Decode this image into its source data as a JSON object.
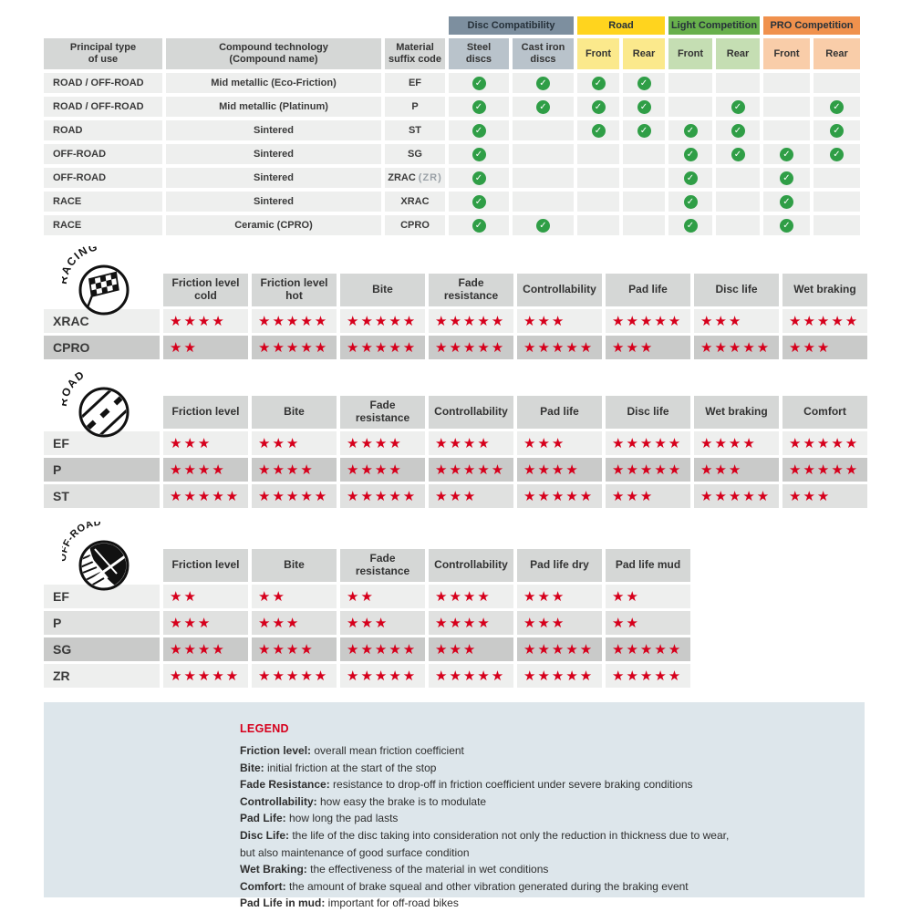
{
  "compat_table": {
    "col_headers": [
      "Principal type\nof use",
      "Compound technology\n(Compound name)",
      "Material\nsuffix code"
    ],
    "groups": [
      {
        "label": "Disc Compatibility",
        "color": "#7d8f9f",
        "sub_color": "#b9c3cb",
        "subs": [
          "Steel\ndiscs",
          "Cast iron\ndiscs"
        ]
      },
      {
        "label": "Road",
        "color": "#ffd41e",
        "sub_color": "#fbe98c",
        "subs": [
          "Front",
          "Rear"
        ]
      },
      {
        "label": "Light Competition",
        "color": "#68b04c",
        "sub_color": "#c5deb3",
        "subs": [
          "Front",
          "Rear"
        ]
      },
      {
        "label": "PRO Competition",
        "color": "#f0914d",
        "sub_color": "#f9cda9",
        "subs": [
          "Front",
          "Rear"
        ]
      }
    ],
    "rows": [
      {
        "use": "ROAD / OFF-ROAD",
        "compound": "Mid metallic (Eco-Friction)",
        "suffix": "EF",
        "suffix_alt": "",
        "checks": [
          1,
          1,
          1,
          1,
          0,
          0,
          0,
          0
        ]
      },
      {
        "use": "ROAD / OFF-ROAD",
        "compound": "Mid metallic (Platinum)",
        "suffix": "P",
        "suffix_alt": "",
        "checks": [
          1,
          1,
          1,
          1,
          0,
          1,
          0,
          1
        ]
      },
      {
        "use": "ROAD",
        "compound": "Sintered",
        "suffix": "ST",
        "suffix_alt": "",
        "checks": [
          1,
          0,
          1,
          1,
          1,
          1,
          0,
          1
        ]
      },
      {
        "use": "OFF-ROAD",
        "compound": "Sintered",
        "suffix": "SG",
        "suffix_alt": "",
        "checks": [
          1,
          0,
          0,
          0,
          1,
          1,
          1,
          1
        ]
      },
      {
        "use": "OFF-ROAD",
        "compound": "Sintered",
        "suffix": "ZRAC",
        "suffix_alt": "(ZR)",
        "checks": [
          1,
          0,
          0,
          0,
          1,
          0,
          1,
          0
        ]
      },
      {
        "use": "RACE",
        "compound": "Sintered",
        "suffix": "XRAC",
        "suffix_alt": "",
        "checks": [
          1,
          0,
          0,
          0,
          1,
          0,
          1,
          0
        ]
      },
      {
        "use": "RACE",
        "compound": "Ceramic (CPRO)",
        "suffix": "CPRO",
        "suffix_alt": "",
        "checks": [
          1,
          1,
          0,
          0,
          1,
          0,
          1,
          0
        ]
      }
    ]
  },
  "rating_tables": [
    {
      "id": "racing",
      "icon": "checkered-flag",
      "icon_label": "RACING",
      "columns": [
        "Friction level cold",
        "Friction level hot",
        "Bite",
        "Fade resistance",
        "Controllability",
        "Pad life",
        "Disc life",
        "Wet braking"
      ],
      "rows": [
        {
          "code": "XRAC",
          "shade": "light",
          "stars": [
            4,
            5,
            5,
            5,
            3,
            5,
            3,
            5
          ]
        },
        {
          "code": "CPRO",
          "shade": "dark",
          "stars": [
            2,
            5,
            5,
            5,
            5,
            3,
            5,
            3
          ]
        }
      ]
    },
    {
      "id": "road",
      "icon": "road",
      "icon_label": "ROAD",
      "columns": [
        "Friction level",
        "Bite",
        "Fade resistance",
        "Controllability",
        "Pad life",
        "Disc life",
        "Wet braking",
        "Comfort"
      ],
      "rows": [
        {
          "code": "EF",
          "shade": "light",
          "stars": [
            3,
            3,
            4,
            4,
            3,
            5,
            4,
            5
          ]
        },
        {
          "code": "P",
          "shade": "dark",
          "stars": [
            4,
            4,
            4,
            5,
            4,
            5,
            3,
            5
          ]
        },
        {
          "code": "ST",
          "shade": "medium",
          "stars": [
            5,
            5,
            5,
            3,
            5,
            3,
            5,
            3
          ]
        }
      ]
    },
    {
      "id": "offroad",
      "icon": "mud-splash",
      "icon_label": "OFF-ROAD",
      "columns": [
        "Friction level",
        "Bite",
        "Fade resistance",
        "Controllability",
        "Pad life dry",
        "Pad life mud"
      ],
      "rows": [
        {
          "code": "EF",
          "shade": "light",
          "stars": [
            2,
            2,
            2,
            4,
            3,
            2
          ]
        },
        {
          "code": "P",
          "shade": "medium",
          "stars": [
            3,
            3,
            3,
            4,
            3,
            2
          ]
        },
        {
          "code": "SG",
          "shade": "dark",
          "stars": [
            4,
            4,
            5,
            3,
            5,
            5
          ]
        },
        {
          "code": "ZR",
          "shade": "light",
          "stars": [
            5,
            5,
            5,
            5,
            5,
            5
          ]
        }
      ]
    }
  ],
  "legend": {
    "title": "LEGEND",
    "entries": [
      {
        "term": "Friction level",
        "desc": "overall mean friction coefficient"
      },
      {
        "term": "Bite",
        "desc": "initial friction at the start of the stop"
      },
      {
        "term": "Fade Resistance",
        "desc": "resistance to drop-off in friction coefficient under severe braking conditions"
      },
      {
        "term": "Controllability",
        "desc": "how easy the brake is to modulate"
      },
      {
        "term": "Pad Life",
        "desc": "how long the pad lasts"
      },
      {
        "term": "Disc Life",
        "desc": "the life of the disc taking into consideration not only the reduction in thickness due to wear,"
      },
      {
        "term": "",
        "desc": "but also maintenance of good surface condition"
      },
      {
        "term": "Wet Braking",
        "desc": "the effectiveness of the material in wet conditions"
      },
      {
        "term": "Comfort",
        "desc": "the amount of brake squeal and other vibration generated during the braking event"
      },
      {
        "term": "Pad Life in mud",
        "desc": "important for off-road bikes"
      }
    ]
  },
  "colors": {
    "star_red": "#d6001c",
    "check_green": "#2f9e46",
    "header_gray": "#d5d7d6",
    "row_light": "#eeefee",
    "row_medium": "#e0e1e0",
    "row_dark": "#c9cac9",
    "disc_group": "#7d8f9f",
    "road_group": "#ffd41e",
    "light_competition_group": "#68b04c",
    "pro_competition_group": "#f0914d",
    "legend_bg": "#dde6eb"
  }
}
